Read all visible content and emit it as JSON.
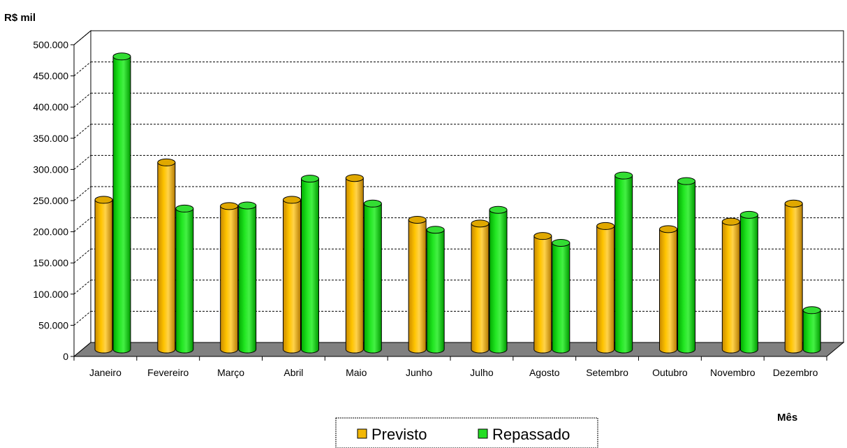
{
  "chart_data": {
    "type": "bar",
    "ylabel": "R$ mil",
    "xlabel": "Mês",
    "categories": [
      "Janeiro",
      "Fevereiro",
      "Março",
      "Abril",
      "Maio",
      "Junho",
      "Julho",
      "Agosto",
      "Setembro",
      "Outubro",
      "Novembro",
      "Dezembro"
    ],
    "series": [
      {
        "name": "Previsto",
        "color": "#F2B705",
        "values": [
          240000,
          300000,
          230000,
          240000,
          275000,
          208000,
          202000,
          182000,
          198000,
          193000,
          205000,
          234000
        ]
      },
      {
        "name": "Repassado",
        "color": "#22DD22",
        "values": [
          470000,
          226000,
          231000,
          274000,
          234000,
          192000,
          224000,
          171000,
          279000,
          270000,
          216000,
          63000
        ]
      }
    ],
    "ylim": [
      0,
      500000
    ],
    "yticks": [
      "0",
      "50.000",
      "100.000",
      "150.000",
      "200.000",
      "250.000",
      "300.000",
      "350.000",
      "400.000",
      "450.000",
      "500.000"
    ],
    "grid": true,
    "legend_position": "bottom-center",
    "floor_color": "#808080"
  }
}
